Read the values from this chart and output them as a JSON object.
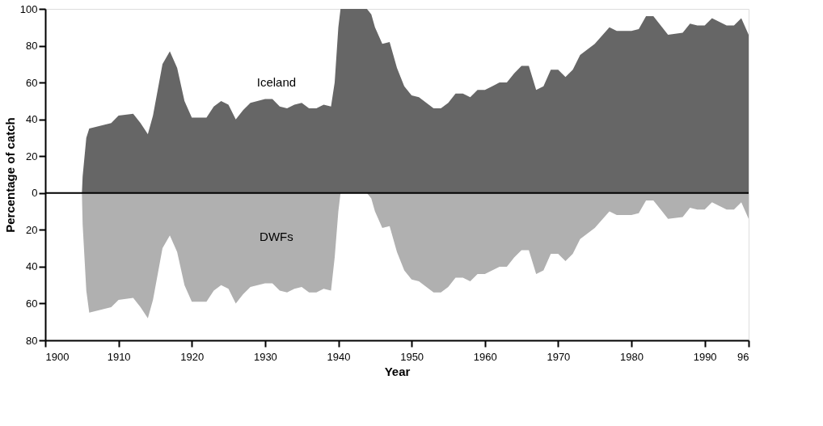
{
  "chart_data": {
    "type": "area",
    "xlabel": "Year",
    "ylabel": "Percentage of catch",
    "x": [
      1905,
      1905.1,
      1905.6,
      1906,
      1908,
      1909,
      1910,
      1912,
      1913,
      1914,
      1914.7,
      1916,
      1917,
      1918,
      1919,
      1920,
      1922,
      1923,
      1924,
      1925,
      1926,
      1927,
      1928,
      1930,
      1931,
      1932,
      1933,
      1934,
      1935,
      1936,
      1937,
      1938,
      1939,
      1939.5,
      1940,
      1940.3,
      1943.9,
      1944.5,
      1945,
      1946,
      1947,
      1948,
      1949,
      1950,
      1951,
      1953,
      1954,
      1955,
      1956,
      1957,
      1958,
      1959,
      1960,
      1961,
      1962,
      1963,
      1964,
      1965,
      1966,
      1967,
      1968,
      1969,
      1970,
      1971,
      1972,
      1973,
      1975,
      1977,
      1978,
      1980,
      1981,
      1982,
      1983,
      1984,
      1985,
      1987,
      1988,
      1989,
      1990,
      1991,
      1992,
      1993,
      1994,
      1995,
      1996
    ],
    "series": [
      {
        "name": "Iceland",
        "color": "#666666",
        "values": [
          0,
          9,
          30,
          35,
          37,
          38,
          42,
          43,
          38,
          32,
          42,
          70,
          77,
          68,
          50,
          41,
          41,
          47,
          50,
          48,
          40,
          45,
          49,
          51,
          51,
          47,
          46,
          48,
          49,
          46,
          46,
          48,
          47,
          60,
          90,
          100,
          100,
          97,
          90,
          81,
          82,
          68,
          58,
          53,
          52,
          46,
          46,
          49,
          54,
          54,
          52,
          56,
          56,
          58,
          60,
          60,
          65,
          69,
          69,
          56,
          58,
          67,
          67,
          63,
          67,
          75,
          81,
          90,
          88,
          88,
          89,
          96,
          96,
          91,
          86,
          87,
          92,
          91,
          91,
          95,
          93,
          91,
          91,
          95,
          86
        ]
      },
      {
        "name": "DWFs",
        "color": "#b0b0b0",
        "values": [
          0,
          -17,
          -53,
          -65,
          -63,
          -62,
          -58,
          -57,
          -62,
          -68,
          -58,
          -30,
          -23,
          -32,
          -50,
          -59,
          -59,
          -53,
          -50,
          -52,
          -60,
          -55,
          -51,
          -49,
          -49,
          -53,
          -54,
          -52,
          -51,
          -54,
          -54,
          -52,
          -53,
          -35,
          -10,
          0,
          0,
          -3,
          -10,
          -19,
          -18,
          -32,
          -42,
          -47,
          -48,
          -54,
          -54,
          -51,
          -46,
          -46,
          -48,
          -44,
          -44,
          -42,
          -40,
          -40,
          -35,
          -31,
          -31,
          -44,
          -42,
          -33,
          -33,
          -37,
          -33,
          -25,
          -19,
          -10,
          -12,
          -12,
          -11,
          -4,
          -4,
          -9,
          -14,
          -13,
          -8,
          -9,
          -9,
          -5,
          -7,
          -9,
          -9,
          -5,
          -14
        ]
      }
    ],
    "xlim": [
      1900,
      1996
    ],
    "xticks": [
      1900,
      1910,
      1920,
      1930,
      1940,
      1950,
      1960,
      1970,
      1980,
      1990,
      {
        "value": 1996,
        "label": "96"
      }
    ],
    "ylim": [
      -80,
      100
    ],
    "yticks": [
      {
        "value": -80,
        "label": "80"
      },
      {
        "value": -60,
        "label": "60"
      },
      {
        "value": -40,
        "label": "40"
      },
      {
        "value": -20,
        "label": "20"
      },
      0,
      20,
      40,
      60,
      80,
      100
    ],
    "ref_lines": [
      {
        "axis": "y",
        "value": 0,
        "color": "#000000"
      }
    ],
    "grid": false
  }
}
